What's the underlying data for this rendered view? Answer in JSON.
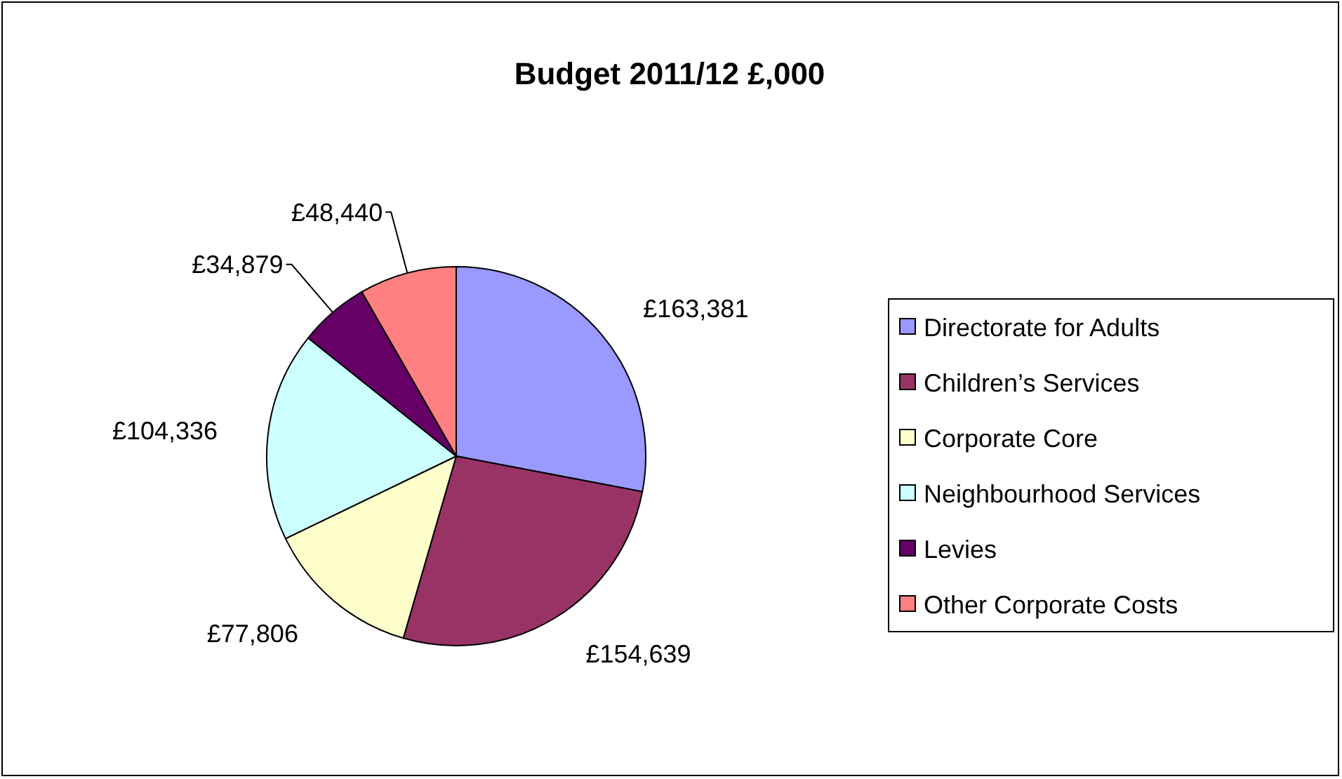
{
  "chart_data": {
    "type": "pie",
    "title": "Budget 2011/12 £,000",
    "categories": [
      "Directorate for Adults",
      "Children’s Services",
      "Corporate Core",
      "Neighbourhood Services",
      "Levies",
      "Other Corporate Costs"
    ],
    "values": [
      163381,
      154639,
      77806,
      104336,
      34879,
      48440
    ],
    "value_labels": [
      "£163,381",
      "£154,639",
      "£77,806",
      "£104,336",
      "£34,879",
      "£48,440"
    ],
    "colors": [
      "#9999ff",
      "#993366",
      "#ffffcc",
      "#ccffff",
      "#660066",
      "#ff8080"
    ],
    "legend": "right"
  }
}
